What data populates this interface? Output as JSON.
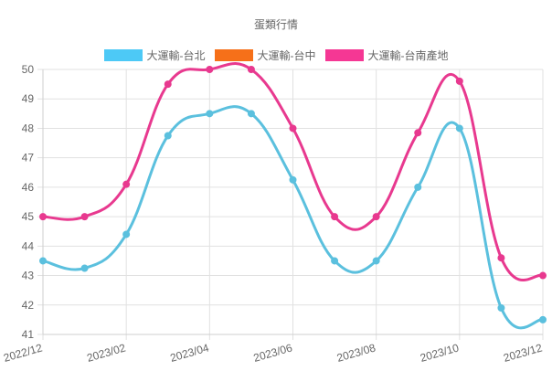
{
  "chart_data": {
    "type": "line",
    "title": "蛋類行情",
    "xlabel": "",
    "ylabel": "",
    "ylim": [
      41,
      50
    ],
    "yticks": [
      41,
      42,
      43,
      44,
      45,
      46,
      47,
      48,
      49,
      50
    ],
    "x": [
      "2022/12",
      "2023/01",
      "2023/02",
      "2023/03",
      "2023/04",
      "2023/05",
      "2023/06",
      "2023/07",
      "2023/08",
      "2023/09",
      "2023/10",
      "2023/11",
      "2023/12"
    ],
    "xtick_labels": [
      "2022/12",
      "2023/02",
      "2023/04",
      "2023/06",
      "2023/08",
      "2023/10",
      "2023/12"
    ],
    "grid": true,
    "legend_position": "top",
    "series": [
      {
        "name": "大運輸-台北",
        "color": "#5bc0de",
        "legend_color": "#4dc9f6",
        "values": [
          43.5,
          43.25,
          44.4,
          47.75,
          48.5,
          48.5,
          46.25,
          43.5,
          43.5,
          46.0,
          48.0,
          41.9,
          41.5
        ]
      },
      {
        "name": "大運輸-台中",
        "color": "#f67019",
        "legend_color": "#f67019",
        "values": []
      },
      {
        "name": "大運輸-台南產地",
        "color": "#e8398f",
        "legend_color": "#f53794",
        "values": [
          45.0,
          45.0,
          46.1,
          49.5,
          50.0,
          50.0,
          48.0,
          45.0,
          45.0,
          47.85,
          49.6,
          43.6,
          43.0
        ]
      }
    ]
  }
}
